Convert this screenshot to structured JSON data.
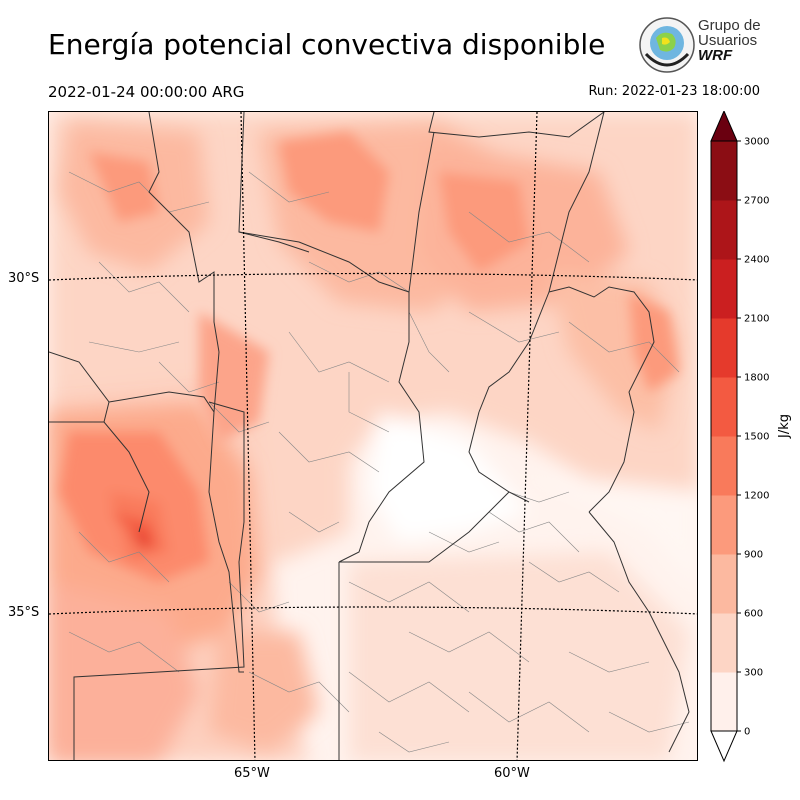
{
  "header": {
    "title": "Energía potencial convectiva disponible",
    "valid_time": "2022-01-24 00:00:00 ARG",
    "run_time": "Run: 2022-01-23 18:00:00"
  },
  "logo": {
    "line1": "Grupo de",
    "line2": "Usuarios",
    "line3": "WRF"
  },
  "map": {
    "lat_labels": [
      "30°S",
      "35°S"
    ],
    "lon_labels": [
      "65°W",
      "60°W"
    ]
  },
  "colorbar": {
    "units": "J/kg",
    "ticks": [
      "0",
      "300",
      "600",
      "900",
      "1200",
      "1500",
      "1800",
      "2100",
      "2400",
      "2700",
      "3000"
    ],
    "colors": [
      "#fff0eb",
      "#fdd5c5",
      "#fcb9a0",
      "#fc9a7c",
      "#f97a5b",
      "#f35a41",
      "#e53a2c",
      "#cb1f20",
      "#ad1519",
      "#8b0d14",
      "#6a0010"
    ]
  }
}
